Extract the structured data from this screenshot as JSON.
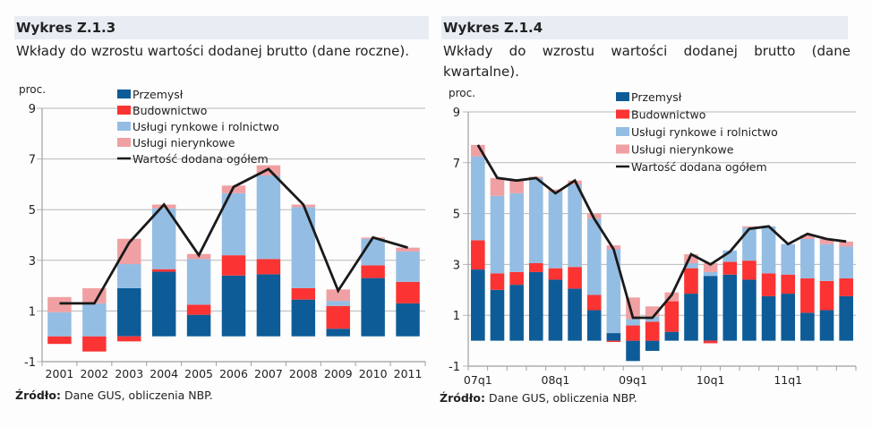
{
  "panels": [
    {
      "title": "Wykres Z.1.3",
      "subtitle": "Wkłady do wzrostu wartości dodanej brutto (dane roczne).",
      "source_label": "Źródło:",
      "source_text": " Dane GUS, obliczenia NBP."
    },
    {
      "title": "Wykres Z.1.4",
      "subtitle": "Wkłady do wzrostu wartości dodanej brutto (dane kwartalne).",
      "source_label": "Źródło:",
      "source_text": " Dane GUS, obliczenia NBP."
    }
  ],
  "colors": {
    "Przemysł": "#0d5c97",
    "Budownictwo": "#fb3333",
    "Usługi rynkowe i rolnictwo": "#94bde3",
    "Usługi nierynkowe": "#f0a0a2",
    "Wartość dodana ogółem": "#1a1a1a",
    "grid": "#b8b8b8",
    "axis": "#a0a0a0"
  },
  "chart_data": [
    {
      "type": "bar",
      "stacked": true,
      "title": "Wkłady do wzrostu wartości dodanej brutto (dane roczne).",
      "ylabel": "proc.",
      "xlabel": "",
      "ylim": [
        -1,
        9
      ],
      "yticks": [
        -1,
        1,
        3,
        5,
        7,
        9
      ],
      "grid": true,
      "legend_position": "top-center",
      "categories": [
        "2001",
        "2002",
        "2003",
        "2004",
        "2005",
        "2006",
        "2007",
        "2008",
        "2009",
        "2010",
        "2011"
      ],
      "x_tick_labels": [
        "2001",
        "2002",
        "2003",
        "2004",
        "2005",
        "2006",
        "2007",
        "2008",
        "2009",
        "2010",
        "2011"
      ],
      "series": [
        {
          "name": "Przemysł",
          "kind": "bar",
          "values": [
            0.0,
            0.0,
            1.9,
            2.55,
            0.85,
            2.4,
            2.45,
            1.45,
            0.3,
            2.3,
            1.3
          ]
        },
        {
          "name": "Budownictwo",
          "kind": "bar",
          "values": [
            -0.3,
            -0.6,
            -0.2,
            0.1,
            0.4,
            0.8,
            0.6,
            0.45,
            0.9,
            0.5,
            0.85
          ]
        },
        {
          "name": "Usługi rynkowe i rolnictwo",
          "kind": "bar",
          "values": [
            0.95,
            1.3,
            0.95,
            2.4,
            1.8,
            2.45,
            3.3,
            3.2,
            0.2,
            1.05,
            1.2
          ]
        },
        {
          "name": "Usługi nierynkowe",
          "kind": "bar",
          "values": [
            0.6,
            0.6,
            1.0,
            0.15,
            0.2,
            0.3,
            0.4,
            0.1,
            0.45,
            0.05,
            0.15
          ]
        },
        {
          "name": "Wartość dodana ogółem",
          "kind": "line",
          "values": [
            1.3,
            1.3,
            3.7,
            5.2,
            3.2,
            5.9,
            6.6,
            5.2,
            1.8,
            3.9,
            3.5
          ]
        }
      ]
    },
    {
      "type": "bar",
      "stacked": true,
      "title": "Wkłady do wzrostu wartości dodanej brutto (dane kwartalne).",
      "ylabel": "proc.",
      "xlabel": "",
      "ylim": [
        -1,
        9
      ],
      "yticks": [
        -1,
        1,
        3,
        5,
        7,
        9
      ],
      "grid": true,
      "legend_position": "top-center",
      "categories": [
        "07q1",
        "07q2",
        "07q3",
        "07q4",
        "08q1",
        "08q2",
        "08q3",
        "08q4",
        "09q1",
        "09q2",
        "09q3",
        "09q4",
        "10q1",
        "10q2",
        "10q3",
        "10q4",
        "11q1",
        "11q2",
        "11q3",
        "11q4"
      ],
      "x_tick_labels": [
        "07q1",
        "",
        "",
        "",
        "08q1",
        "",
        "",
        "",
        "09q1",
        "",
        "",
        "",
        "10q1",
        "",
        "",
        "",
        "11q1",
        "",
        "",
        ""
      ],
      "series": [
        {
          "name": "Przemysł",
          "kind": "bar",
          "values": [
            2.8,
            2.0,
            2.2,
            2.7,
            2.4,
            2.05,
            1.2,
            0.3,
            -0.8,
            -0.4,
            0.35,
            1.85,
            2.55,
            2.6,
            2.4,
            1.75,
            1.85,
            1.1,
            1.2,
            1.75
          ]
        },
        {
          "name": "Budownictwo",
          "kind": "bar",
          "values": [
            1.15,
            0.65,
            0.5,
            0.35,
            0.45,
            0.85,
            0.6,
            -0.05,
            0.6,
            0.75,
            1.2,
            1.0,
            -0.1,
            0.5,
            0.75,
            0.9,
            0.75,
            1.35,
            1.15,
            0.7
          ]
        },
        {
          "name": "Usługi rynkowe i rolnictwo",
          "kind": "bar",
          "values": [
            3.3,
            3.05,
            3.1,
            3.35,
            3.0,
            3.25,
            3.0,
            3.3,
            0.25,
            0.2,
            0.0,
            0.2,
            0.15,
            0.45,
            1.3,
            1.85,
            1.2,
            1.55,
            1.45,
            1.25
          ]
        },
        {
          "name": "Usługi nierynkowe",
          "kind": "bar",
          "values": [
            0.45,
            0.7,
            0.5,
            0.05,
            0.1,
            0.15,
            0.2,
            0.15,
            0.85,
            0.4,
            0.35,
            0.35,
            0.35,
            0.0,
            0.05,
            0.0,
            0.0,
            0.15,
            0.2,
            0.2
          ]
        },
        {
          "name": "Wartość dodana ogółem",
          "kind": "line",
          "values": [
            7.7,
            6.4,
            6.3,
            6.4,
            5.8,
            6.3,
            4.8,
            3.6,
            0.9,
            0.9,
            1.8,
            3.4,
            3.0,
            3.5,
            4.4,
            4.5,
            3.8,
            4.2,
            4.0,
            3.9
          ]
        }
      ]
    }
  ]
}
